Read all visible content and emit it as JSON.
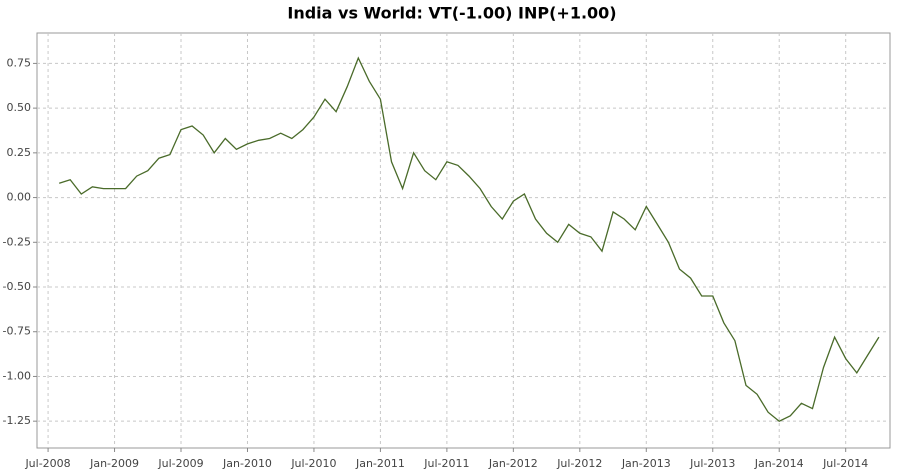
{
  "chart_data": {
    "type": "line",
    "title": "India vs World: VT(-1.00) INP(+1.00)",
    "x": [
      "2008-08",
      "2008-09",
      "2008-10",
      "2008-11",
      "2008-12",
      "2009-01",
      "2009-02",
      "2009-03",
      "2009-04",
      "2009-05",
      "2009-06",
      "2009-07",
      "2009-08",
      "2009-09",
      "2009-10",
      "2009-11",
      "2009-12",
      "2010-01",
      "2010-02",
      "2010-03",
      "2010-04",
      "2010-05",
      "2010-06",
      "2010-07",
      "2010-08",
      "2010-09",
      "2010-10",
      "2010-11",
      "2010-12",
      "2011-01",
      "2011-02",
      "2011-03",
      "2011-04",
      "2011-05",
      "2011-06",
      "2011-07",
      "2011-08",
      "2011-09",
      "2011-10",
      "2011-11",
      "2011-12",
      "2012-01",
      "2012-02",
      "2012-03",
      "2012-04",
      "2012-05",
      "2012-06",
      "2012-07",
      "2012-08",
      "2012-09",
      "2012-10",
      "2012-11",
      "2012-12",
      "2013-01",
      "2013-02",
      "2013-03",
      "2013-04",
      "2013-05",
      "2013-06",
      "2013-07",
      "2013-08",
      "2013-09",
      "2013-10",
      "2013-11",
      "2013-12",
      "2014-01",
      "2014-02",
      "2014-03",
      "2014-04",
      "2014-05",
      "2014-06",
      "2014-07",
      "2014-08",
      "2014-09",
      "2014-10"
    ],
    "series": [
      {
        "name": "VT(-1.00) INP(+1.00)",
        "color": "#4a6b2a",
        "values": [
          0.08,
          0.1,
          0.02,
          0.06,
          0.05,
          0.05,
          0.05,
          0.12,
          0.15,
          0.22,
          0.24,
          0.38,
          0.4,
          0.35,
          0.25,
          0.33,
          0.27,
          0.3,
          0.32,
          0.33,
          0.36,
          0.33,
          0.38,
          0.45,
          0.55,
          0.48,
          0.62,
          0.78,
          0.65,
          0.55,
          0.2,
          0.05,
          0.25,
          0.15,
          0.1,
          0.2,
          0.18,
          0.12,
          0.05,
          -0.05,
          -0.12,
          -0.02,
          0.02,
          -0.12,
          -0.2,
          -0.25,
          -0.15,
          -0.2,
          -0.22,
          -0.3,
          -0.08,
          -0.12,
          -0.18,
          -0.05,
          -0.15,
          -0.25,
          -0.4,
          -0.45,
          -0.55,
          -0.55,
          -0.7,
          -0.8,
          -1.05,
          -1.1,
          -1.2,
          -1.25,
          -1.22,
          -1.15,
          -1.18,
          -0.95,
          -0.78,
          -0.9,
          -0.98,
          -0.88,
          -0.78
        ]
      }
    ],
    "xlim": [
      "2008-06",
      "2014-11"
    ],
    "xticks": [
      {
        "value": "2008-07",
        "label": "Jul-2008"
      },
      {
        "value": "2009-01",
        "label": "Jan-2009"
      },
      {
        "value": "2009-07",
        "label": "Jul-2009"
      },
      {
        "value": "2010-01",
        "label": "Jan-2010"
      },
      {
        "value": "2010-07",
        "label": "Jul-2010"
      },
      {
        "value": "2011-01",
        "label": "Jan-2011"
      },
      {
        "value": "2011-07",
        "label": "Jul-2011"
      },
      {
        "value": "2012-01",
        "label": "Jan-2012"
      },
      {
        "value": "2012-07",
        "label": "Jul-2012"
      },
      {
        "value": "2013-01",
        "label": "Jan-2013"
      },
      {
        "value": "2013-07",
        "label": "Jul-2013"
      },
      {
        "value": "2014-01",
        "label": "Jan-2014"
      },
      {
        "value": "2014-07",
        "label": "Jul-2014"
      }
    ],
    "ylim": [
      -1.4,
      0.92
    ],
    "yticks": [
      0.75,
      {
        "value": 0.5,
        "label": "0.50"
      },
      0.25,
      {
        "value": 0,
        "label": "0.00"
      },
      -0.25,
      {
        "value": -0.5,
        "label": "-0.50"
      },
      -0.75,
      {
        "value": -1,
        "label": "-1.00"
      },
      -1.25
    ],
    "grid": true
  }
}
